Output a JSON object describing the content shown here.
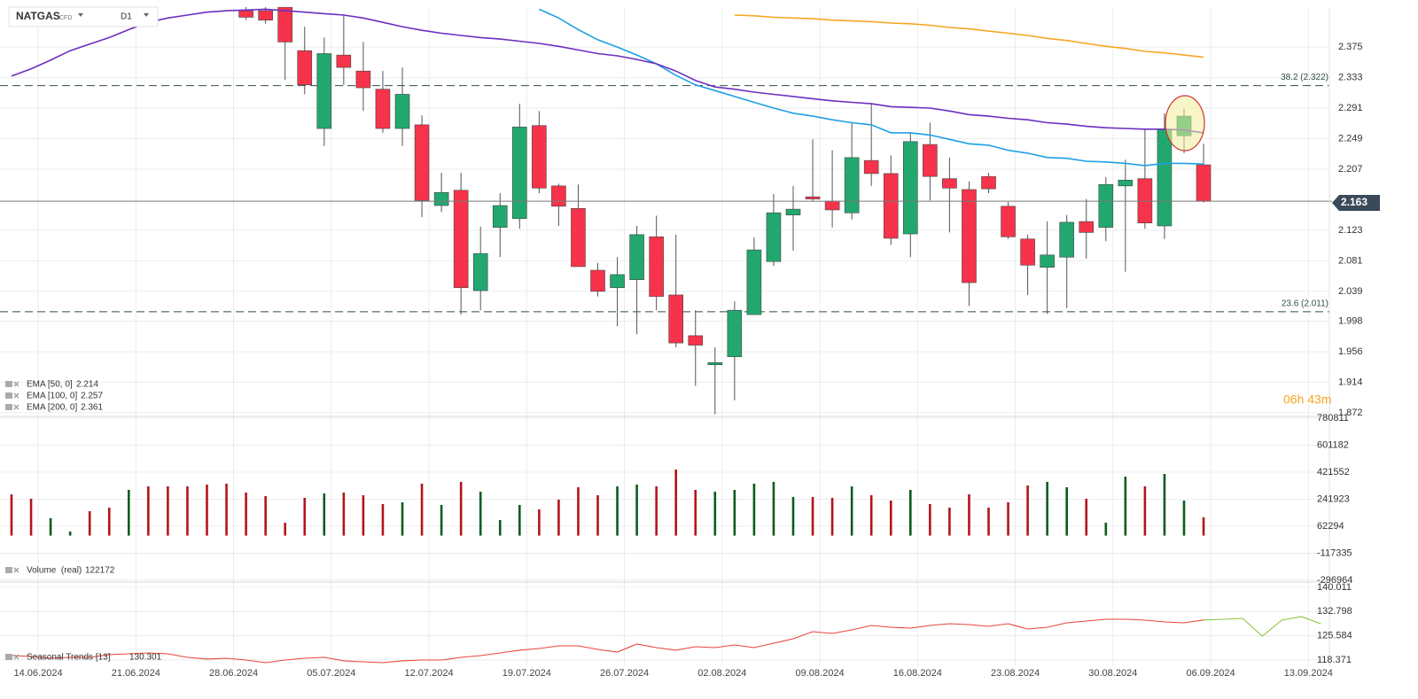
{
  "header": {
    "symbol": "NATGAS",
    "kind": "CFD",
    "timeframe": "D1"
  },
  "chart_data": [
    {
      "type": "candlestick",
      "up_color": "#22a86f",
      "down_color": "#f6334a",
      "ylim": [
        1.867,
        2.419
      ],
      "yticks": [
        2.375,
        2.333,
        2.291,
        2.249,
        2.207,
        2.123,
        2.081,
        2.039,
        1.998,
        1.956,
        1.914,
        1.872
      ],
      "open": [
        null,
        null,
        null,
        null,
        null,
        null,
        null,
        null,
        null,
        null,
        null,
        null,
        2.425,
        2.425,
        2.43,
        2.37,
        2.263,
        2.364,
        2.342,
        2.317,
        2.263,
        2.268,
        2.157,
        2.178,
        2.04,
        2.127,
        2.139,
        2.267,
        2.184,
        2.153,
        2.068,
        2.044,
        2.055,
        2.114,
        2.034,
        1.978,
        1.938,
        1.949,
        2.007,
        2.08,
        2.144,
        2.169,
        2.163,
        2.147,
        2.219,
        2.201,
        2.118,
        2.241,
        2.194,
        2.179,
        2.197,
        2.156,
        2.111,
        2.072,
        2.086,
        2.135,
        2.127,
        2.184,
        2.194,
        2.129,
        2.253,
        2.213
      ],
      "high": [
        null,
        null,
        null,
        null,
        null,
        null,
        null,
        null,
        null,
        null,
        null,
        null,
        2.44,
        2.43,
        2.435,
        2.403,
        2.388,
        2.419,
        2.382,
        2.342,
        2.347,
        2.281,
        2.202,
        2.202,
        2.128,
        2.174,
        2.297,
        2.287,
        2.187,
        2.186,
        2.078,
        2.086,
        2.129,
        2.143,
        2.117,
        2.013,
        1.962,
        2.025,
        2.113,
        2.173,
        2.184,
        2.248,
        2.233,
        2.271,
        2.297,
        2.226,
        2.257,
        2.271,
        2.223,
        2.19,
        2.202,
        2.162,
        2.117,
        2.135,
        2.144,
        2.166,
        2.196,
        2.22,
        2.263,
        2.284,
        2.29,
        2.242
      ],
      "low": [
        null,
        null,
        null,
        null,
        null,
        null,
        null,
        null,
        null,
        null,
        null,
        null,
        2.412,
        2.407,
        2.33,
        2.31,
        2.239,
        2.323,
        2.287,
        2.257,
        2.239,
        2.141,
        2.148,
        2.007,
        2.013,
        2.086,
        2.125,
        2.174,
        2.129,
        2.073,
        2.032,
        1.991,
        1.98,
        2.013,
        1.962,
        1.909,
        1.87,
        1.889,
        2.007,
        2.074,
        2.095,
        2.162,
        2.127,
        2.138,
        2.184,
        2.103,
        2.086,
        2.164,
        2.12,
        2.019,
        2.174,
        2.111,
        2.034,
        2.008,
        2.016,
        2.084,
        2.108,
        2.066,
        2.125,
        2.111,
        2.229,
        2.161
      ],
      "close": [
        null,
        null,
        null,
        null,
        null,
        null,
        null,
        null,
        null,
        null,
        null,
        null,
        2.416,
        2.412,
        2.382,
        2.323,
        2.366,
        2.347,
        2.319,
        2.263,
        2.31,
        2.164,
        2.175,
        2.044,
        2.091,
        2.157,
        2.265,
        2.181,
        2.156,
        2.073,
        2.039,
        2.062,
        2.117,
        2.032,
        1.968,
        1.965,
        1.941,
        2.013,
        2.096,
        2.147,
        2.152,
        2.166,
        2.151,
        2.223,
        2.201,
        2.112,
        2.245,
        2.197,
        2.181,
        2.051,
        2.18,
        2.114,
        2.075,
        2.089,
        2.134,
        2.12,
        2.186,
        2.192,
        2.133,
        2.262,
        2.28,
        2.163
      ],
      "series": [
        {
          "name": "EMA [50, 0]",
          "color": "#1e9fe6",
          "values": [
            null,
            null,
            null,
            null,
            null,
            null,
            null,
            null,
            null,
            null,
            null,
            null,
            null,
            null,
            null,
            null,
            null,
            null,
            null,
            null,
            null,
            null,
            null,
            null,
            null,
            null,
            null,
            2.427,
            2.415,
            2.399,
            2.385,
            2.375,
            2.364,
            2.352,
            2.336,
            2.323,
            2.315,
            2.307,
            2.299,
            2.291,
            2.284,
            2.28,
            2.275,
            2.271,
            2.268,
            2.257,
            2.257,
            2.254,
            2.248,
            2.242,
            2.24,
            2.233,
            2.229,
            2.223,
            2.222,
            2.218,
            2.217,
            2.215,
            2.212,
            2.215,
            2.215,
            2.214
          ]
        },
        {
          "name": "EMA [100, 0]",
          "color": "#6a2fc0",
          "values": [
            2.335,
            2.345,
            2.357,
            2.37,
            2.379,
            2.388,
            2.399,
            2.409,
            2.415,
            2.419,
            2.423,
            2.425,
            2.426,
            2.427,
            2.425,
            2.423,
            2.421,
            2.419,
            2.415,
            2.409,
            2.403,
            2.398,
            2.394,
            2.391,
            2.388,
            2.386,
            2.383,
            2.38,
            2.376,
            2.371,
            2.366,
            2.363,
            2.358,
            2.352,
            2.342,
            2.329,
            2.32,
            2.317,
            2.313,
            2.31,
            2.307,
            2.304,
            2.301,
            2.299,
            2.297,
            2.293,
            2.292,
            2.291,
            2.287,
            2.282,
            2.28,
            2.277,
            2.275,
            2.271,
            2.269,
            2.266,
            2.264,
            2.263,
            2.262,
            2.262,
            2.261,
            2.257
          ]
        },
        {
          "name": "EMA [200, 0]",
          "color": "#f5a623",
          "values": [
            null,
            null,
            null,
            null,
            null,
            null,
            null,
            null,
            null,
            null,
            null,
            null,
            null,
            null,
            null,
            null,
            null,
            null,
            null,
            null,
            null,
            null,
            null,
            null,
            null,
            null,
            null,
            null,
            null,
            null,
            null,
            null,
            null,
            null,
            null,
            null,
            null,
            2.419,
            2.418,
            2.416,
            2.415,
            2.414,
            2.412,
            2.411,
            2.41,
            2.408,
            2.407,
            2.405,
            2.402,
            2.4,
            2.397,
            2.394,
            2.391,
            2.387,
            2.384,
            2.38,
            2.376,
            2.373,
            2.369,
            2.367,
            2.364,
            2.361
          ]
        }
      ],
      "levels": [
        {
          "label": "38.2 (2.322)",
          "value": 2.322
        },
        {
          "label": "23.6 (2.011)",
          "value": 2.011
        }
      ],
      "countdown": "06h 43m"
    },
    {
      "type": "bar",
      "name": "Volume  (real)",
      "ylim": [
        -308800,
        792500
      ],
      "yticks": [
        780811,
        601182,
        421552,
        241923,
        62294,
        -117335,
        -296964
      ],
      "values": [
        274400,
        245000,
        115400,
        27100,
        162500,
        186100,
        303900,
        327400,
        327400,
        327400,
        339200,
        345100,
        286200,
        262600,
        86000,
        250900,
        280300,
        286200,
        268500,
        209600,
        221400,
        345100,
        203800,
        356900,
        292100,
        103600,
        203800,
        174300,
        239100,
        321500,
        268500,
        327400,
        339200,
        327400,
        439300,
        303900,
        292100,
        303900,
        345100,
        356900,
        256800,
        256800,
        250900,
        327400,
        268500,
        233200,
        303900,
        209600,
        186100,
        274400,
        186100,
        221400,
        333300,
        356900,
        321500,
        245000,
        86000,
        392200,
        327400,
        409900,
        233200,
        122172
      ],
      "colors": [
        "#b3141c",
        "#b3141c",
        "#0b5c1c",
        "#0b5c1c",
        "#b3141c",
        "#b3141c",
        "#0b5c1c",
        "#b3141c",
        "#b3141c",
        "#b3141c",
        "#b3141c",
        "#b3141c",
        "#b3141c",
        "#b3141c",
        "#b3141c",
        "#b3141c",
        "#0b5c1c",
        "#b3141c",
        "#b3141c",
        "#b3141c",
        "#0b5c1c",
        "#b3141c",
        "#0b5c1c",
        "#b3141c",
        "#0b5c1c",
        "#0b5c1c",
        "#0b5c1c",
        "#b3141c",
        "#b3141c",
        "#b3141c",
        "#b3141c",
        "#0b5c1c",
        "#0b5c1c",
        "#b3141c",
        "#b3141c",
        "#b3141c",
        "#0b5c1c",
        "#0b5c1c",
        "#0b5c1c",
        "#0b5c1c",
        "#0b5c1c",
        "#b3141c",
        "#b3141c",
        "#0b5c1c",
        "#b3141c",
        "#b3141c",
        "#0b5c1c",
        "#b3141c",
        "#b3141c",
        "#b3141c",
        "#b3141c",
        "#b3141c",
        "#b3141c",
        "#0b5c1c",
        "#0b5c1c",
        "#b3141c",
        "#0b5c1c",
        "#0b5c1c",
        "#b3141c",
        "#0b5c1c",
        "#0b5c1c",
        "#b3141c"
      ]
    },
    {
      "type": "line",
      "ylim": [
        116.5,
        141.6
      ],
      "yticks": [
        140.011,
        132.798,
        125.584,
        118.371
      ],
      "categories": [
        null,
        "14.06.2024",
        null,
        null,
        null,
        null,
        "21.06.2024",
        null,
        null,
        null,
        null,
        "28.06.2024",
        null,
        null,
        null,
        null,
        "05.07.2024",
        null,
        null,
        null,
        null,
        "12.07.2024",
        null,
        null,
        null,
        null,
        "19.07.2024",
        null,
        null,
        null,
        null,
        "26.07.2024",
        null,
        null,
        null,
        null,
        "02.08.2024",
        null,
        null,
        null,
        null,
        "09.08.2024",
        null,
        null,
        null,
        null,
        "16.08.2024",
        null,
        null,
        null,
        null,
        "23.08.2024",
        null,
        null,
        null,
        null,
        "30.08.2024",
        null,
        null,
        null,
        null,
        "06.09.2024",
        null,
        null,
        null,
        null,
        "13.09.2024",
        null
      ],
      "series": [
        {
          "name": "Seasonal Trends [13]",
          "color": "#e8453c",
          "values": [
            119.68,
            119.42,
            118.89,
            119.15,
            119.15,
            119.95,
            120.21,
            120.47,
            120.21,
            119.15,
            118.63,
            118.89,
            118.36,
            117.57,
            118.36,
            118.89,
            119.15,
            118.1,
            117.83,
            117.57,
            118.1,
            118.36,
            118.36,
            119.15,
            119.68,
            120.47,
            121.27,
            121.79,
            122.59,
            122.59,
            121.53,
            120.74,
            123.11,
            122.06,
            121.27,
            122.32,
            122.06,
            122.85,
            122.06,
            123.38,
            124.7,
            126.81,
            126.28,
            127.34,
            128.66,
            128.13,
            127.87,
            128.66,
            129.19,
            128.92,
            128.4,
            129.19,
            127.6,
            128.13,
            129.45,
            129.98,
            130.51,
            130.51,
            130.24,
            129.72,
            129.45,
            130.301,
            null,
            null,
            null,
            null,
            null,
            null
          ]
        },
        {
          "color": "#8cc63e",
          "values": [
            null,
            null,
            null,
            null,
            null,
            null,
            null,
            null,
            null,
            null,
            null,
            null,
            null,
            null,
            null,
            null,
            null,
            null,
            null,
            null,
            null,
            null,
            null,
            null,
            null,
            null,
            null,
            null,
            null,
            null,
            null,
            null,
            null,
            null,
            null,
            null,
            null,
            null,
            null,
            null,
            null,
            null,
            null,
            null,
            null,
            null,
            null,
            null,
            null,
            null,
            null,
            null,
            null,
            null,
            null,
            null,
            null,
            null,
            null,
            null,
            null,
            130.301,
            130.51,
            130.77,
            125.49,
            130.24,
            131.3,
            129.19
          ]
        }
      ]
    }
  ]
}
